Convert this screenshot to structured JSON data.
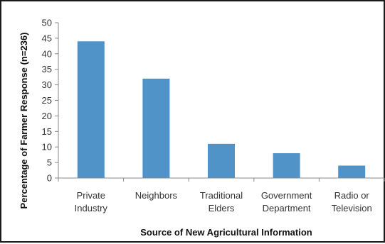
{
  "chart_data": {
    "type": "bar",
    "title": "",
    "xlabel": "Source of New Agricultural Information",
    "ylabel": "Percentage of Farmer Response (n=236)",
    "categories": [
      [
        "Private",
        "Industry"
      ],
      [
        "Neighbors"
      ],
      [
        "Traditional",
        "Elders"
      ],
      [
        "Government",
        "Department"
      ],
      [
        "Radio or",
        "Television"
      ]
    ],
    "values": [
      44,
      32,
      11,
      8,
      4
    ],
    "ylim": [
      0,
      50
    ],
    "yticks": [
      "0",
      "5",
      "10",
      "15",
      "20",
      "25",
      "30",
      "35",
      "40",
      "45",
      "50"
    ],
    "grid": false,
    "legend": "none",
    "colors": {
      "bar": "#4f93c8",
      "axis": "#888888",
      "frame": "#1a1a1a"
    }
  }
}
